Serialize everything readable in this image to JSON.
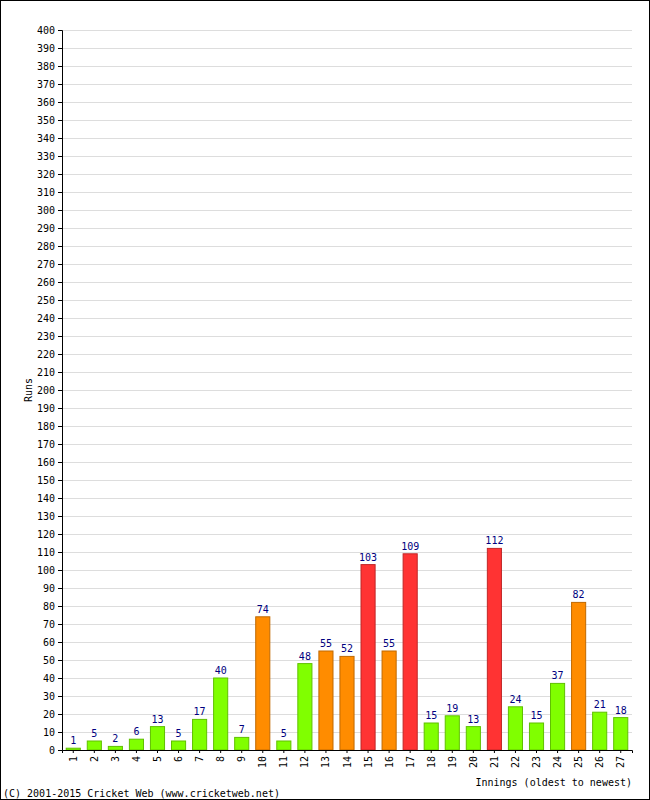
{
  "chart_data": {
    "type": "bar",
    "categories": [
      "1",
      "2",
      "3",
      "4",
      "5",
      "6",
      "7",
      "8",
      "9",
      "10",
      "11",
      "12",
      "13",
      "14",
      "15",
      "16",
      "17",
      "18",
      "19",
      "20",
      "21",
      "22",
      "23",
      "24",
      "25",
      "26",
      "27"
    ],
    "values": [
      1,
      5,
      2,
      6,
      13,
      5,
      17,
      40,
      7,
      74,
      5,
      48,
      55,
      52,
      103,
      55,
      109,
      15,
      19,
      13,
      112,
      24,
      15,
      37,
      82,
      21,
      18
    ],
    "colors": [
      "#80ff00",
      "#80ff00",
      "#80ff00",
      "#80ff00",
      "#80ff00",
      "#80ff00",
      "#80ff00",
      "#80ff00",
      "#80ff00",
      "#ff8c00",
      "#80ff00",
      "#80ff00",
      "#ff8c00",
      "#ff8c00",
      "#ff3333",
      "#ff8c00",
      "#ff3333",
      "#80ff00",
      "#80ff00",
      "#80ff00",
      "#ff3333",
      "#80ff00",
      "#80ff00",
      "#80ff00",
      "#ff8c00",
      "#80ff00",
      "#80ff00"
    ],
    "x_label": "Innings (oldest to newest)",
    "y_label": "Runs",
    "annotations": [
      "(C) 2001-2015 Cricket Web (www.cricketweb.net)"
    ],
    "ylim": [
      0,
      400
    ],
    "yticks": [
      0,
      10,
      20,
      30,
      40,
      50,
      60,
      70,
      80,
      90,
      100,
      110,
      120,
      130,
      140,
      150,
      160,
      170,
      180,
      190,
      200,
      210,
      220,
      230,
      240,
      250,
      260,
      270,
      280,
      290,
      300,
      310,
      320,
      330,
      340,
      350,
      360,
      370,
      380,
      390,
      400
    ],
    "grid": true,
    "data_labels": true
  }
}
